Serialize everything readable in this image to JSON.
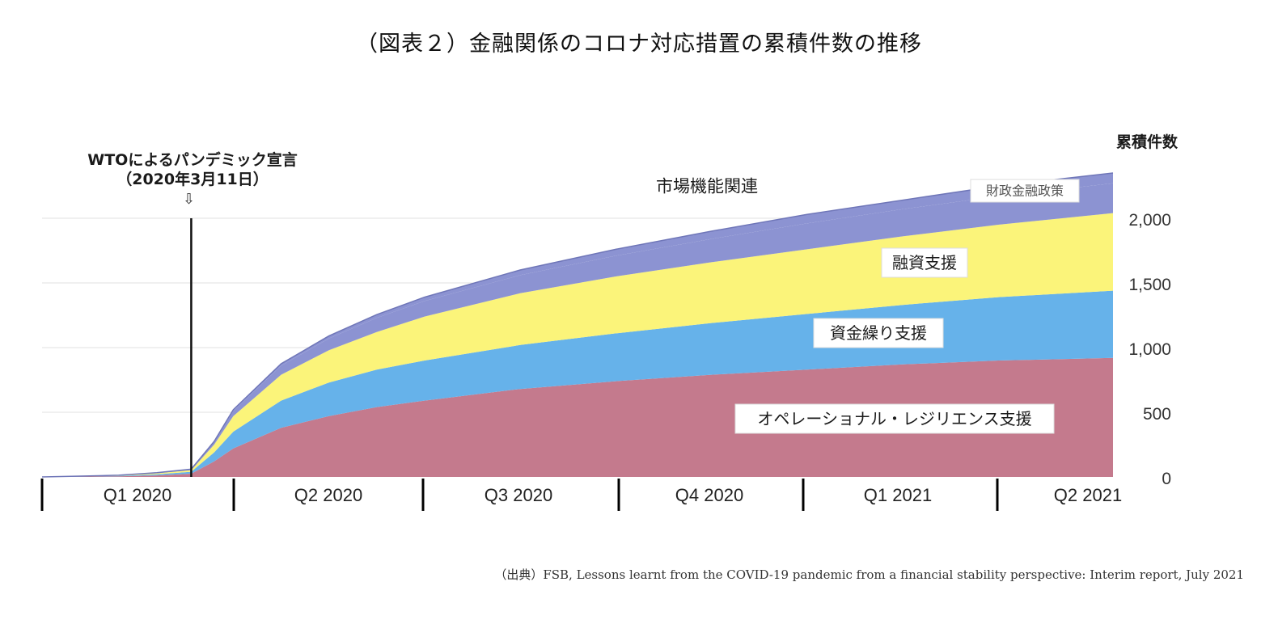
{
  "title": "（図表２）金融関係のコロナ対応措置の累積件数の推移",
  "source": "（出典）FSB, Lessons learnt from the COVID-19 pandemic from a financial stability perspective: Interim report, July 2021",
  "annotation": {
    "line1": "WTOによるパンデミック宣言",
    "line2": "（2020年3月11日）",
    "arrow": "⇩"
  },
  "chart_data": {
    "type": "area",
    "stacked": true,
    "ylabel": "累積件数",
    "ylim": [
      0,
      2500
    ],
    "yticks": [
      0,
      500,
      1000,
      1500,
      2000
    ],
    "ytick_labels": [
      "0",
      "500",
      "1,000",
      "1,500",
      "2,000"
    ],
    "x_ticks": [
      "Q1 2020",
      "Q2 2020",
      "Q3 2020",
      "Q4 2020",
      "Q1 2021",
      "Q2 2021"
    ],
    "event_x": 0.78,
    "x": [
      0,
      0.4,
      0.6,
      0.78,
      0.9,
      1.0,
      1.25,
      1.5,
      1.75,
      2.0,
      2.5,
      3.0,
      3.5,
      4.0,
      4.5,
      5.0,
      5.6
    ],
    "series": [
      {
        "name": "オペレーショナル・レジリエンス支援",
        "color": "#c47a8d",
        "values": [
          0,
          5,
          12,
          25,
          120,
          220,
          380,
          470,
          540,
          590,
          680,
          740,
          790,
          830,
          870,
          900,
          920
        ]
      },
      {
        "name": "資金繰り支援",
        "color": "#66b2ea",
        "values": [
          0,
          3,
          8,
          15,
          70,
          130,
          210,
          260,
          290,
          310,
          340,
          370,
          400,
          430,
          460,
          490,
          520
        ]
      },
      {
        "name": "融資支援",
        "color": "#fbf47a",
        "values": [
          0,
          3,
          8,
          12,
          60,
          120,
          200,
          250,
          290,
          340,
          400,
          440,
          470,
          500,
          530,
          560,
          600
        ]
      },
      {
        "name": "市場機能関連",
        "color": "#8c93d2",
        "values": [
          0,
          1,
          3,
          5,
          20,
          40,
          70,
          90,
          110,
          120,
          140,
          160,
          180,
          200,
          210,
          220,
          230
        ]
      },
      {
        "name": "財政金融政策",
        "color": "#8c93d2",
        "values": [
          0,
          1,
          2,
          3,
          5,
          10,
          15,
          20,
          25,
          30,
          40,
          50,
          60,
          70,
          70,
          80,
          80
        ]
      }
    ],
    "labels": [
      {
        "text": "オペレーショナル・レジリエンス支援",
        "boxed": true
      },
      {
        "text": "資金繰り支援",
        "boxed": true
      },
      {
        "text": "融資支援",
        "boxed": true
      },
      {
        "text": "市場機能関連",
        "boxed": false
      },
      {
        "text": "財政金融政策",
        "boxed": true
      }
    ]
  }
}
